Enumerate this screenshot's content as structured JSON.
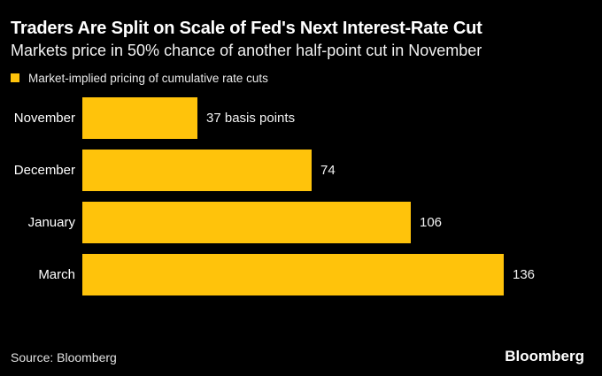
{
  "header": {
    "title": "Traders Are Split on Scale of Fed's Next Interest-Rate Cut",
    "subtitle": "Markets price in 50% chance of another half-point cut in November"
  },
  "legend": {
    "label": "Market-implied pricing of cumulative rate cuts",
    "swatch_color": "#FFC30B"
  },
  "chart_data": {
    "type": "bar",
    "orientation": "horizontal",
    "title": "Traders Are Split on Scale of Fed's Next Interest-Rate Cut",
    "subtitle": "Markets price in 50% chance of another half-point cut in November",
    "series_name": "Market-implied pricing of cumulative rate cuts",
    "categories": [
      "November",
      "December",
      "January",
      "March"
    ],
    "values": [
      37,
      74,
      106,
      136
    ],
    "value_labels": [
      "37 basis points",
      "74",
      "106",
      "136"
    ],
    "unit": "basis points",
    "xlim": [
      0,
      136
    ],
    "bar_color": "#FFC30B",
    "gridlines": false,
    "axis_ticks_visible": false,
    "legend_position": "top-left"
  },
  "footer": {
    "source": "Source: Bloomberg",
    "brand": "Bloomberg"
  }
}
